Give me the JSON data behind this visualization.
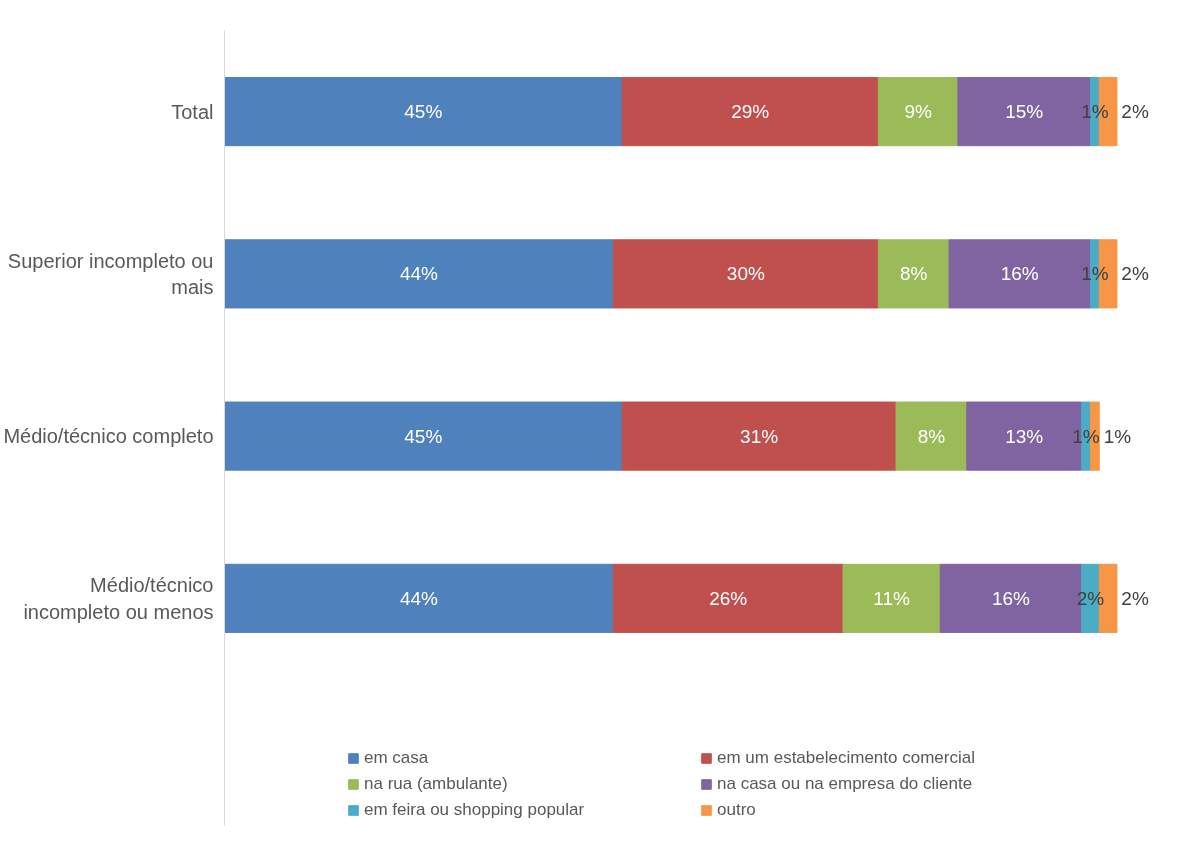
{
  "chart_data": {
    "type": "bar",
    "orientation": "horizontal",
    "stacked": true,
    "grid": false,
    "legend": "bottom",
    "categories": [
      "Total",
      "Superior incompleto ou mais",
      "Médio/técnico completo",
      "Médio/técnico incompleto ou menos"
    ],
    "series": [
      {
        "name": "em casa",
        "color": "#4f81bd",
        "values": [
          45,
          44,
          45,
          44
        ],
        "value_labels": [
          "45%",
          "44%",
          "45%",
          "44%"
        ]
      },
      {
        "name": "em um estabelecimento comercial",
        "color": "#c0504d",
        "values": [
          29,
          30,
          31,
          26
        ],
        "value_labels": [
          "29%",
          "30%",
          "31%",
          "26%"
        ]
      },
      {
        "name": "na rua (ambulante)",
        "color": "#9bbb59",
        "values": [
          9,
          8,
          8,
          11
        ],
        "value_labels": [
          "9%",
          "8%",
          "8%",
          "11%"
        ]
      },
      {
        "name": "na casa ou na empresa do cliente",
        "color": "#8064a2",
        "values": [
          15,
          16,
          13,
          16
        ],
        "value_labels": [
          "15%",
          "16%",
          "13%",
          "16%"
        ]
      },
      {
        "name": "em feira ou shopping popular",
        "color": "#4bacc6",
        "values": [
          1,
          1,
          1,
          2
        ],
        "value_labels": [
          "1%",
          "1%",
          "1%",
          "2%"
        ]
      },
      {
        "name": "outro",
        "color": "#f79646",
        "values": [
          2,
          2,
          1,
          2
        ],
        "value_labels": [
          "2%",
          "2%",
          "1%",
          "2%"
        ]
      }
    ]
  }
}
